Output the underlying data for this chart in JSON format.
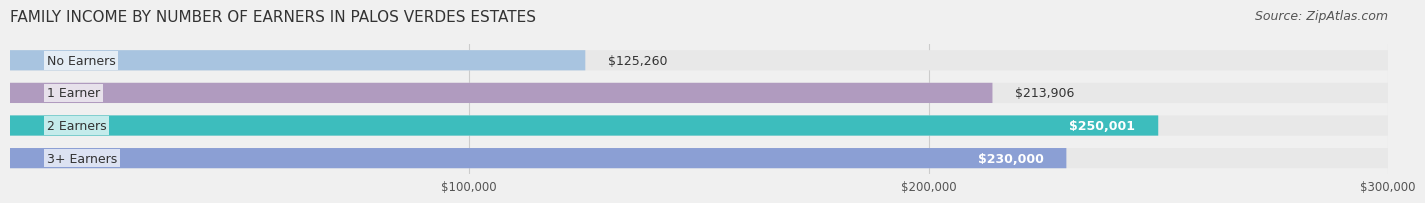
{
  "title": "FAMILY INCOME BY NUMBER OF EARNERS IN PALOS VERDES ESTATES",
  "source": "Source: ZipAtlas.com",
  "categories": [
    "No Earners",
    "1 Earner",
    "2 Earners",
    "3+ Earners"
  ],
  "values": [
    125260,
    213906,
    250001,
    230000
  ],
  "bar_colors": [
    "#a8c4e0",
    "#b09bbf",
    "#3dbdbd",
    "#8b9fd4"
  ],
  "label_colors": [
    "#333333",
    "#333333",
    "#ffffff",
    "#ffffff"
  ],
  "value_labels": [
    "$125,260",
    "$213,906",
    "$250,001",
    "$230,000"
  ],
  "xlim": [
    0,
    300000
  ],
  "xticks": [
    100000,
    200000,
    300000
  ],
  "xtick_labels": [
    "$100,000",
    "$200,000",
    "$300,000"
  ],
  "background_color": "#f0f0f0",
  "bar_background_color": "#e8e8e8",
  "title_fontsize": 11,
  "source_fontsize": 9,
  "bar_label_fontsize": 9,
  "value_label_fontsize": 9
}
